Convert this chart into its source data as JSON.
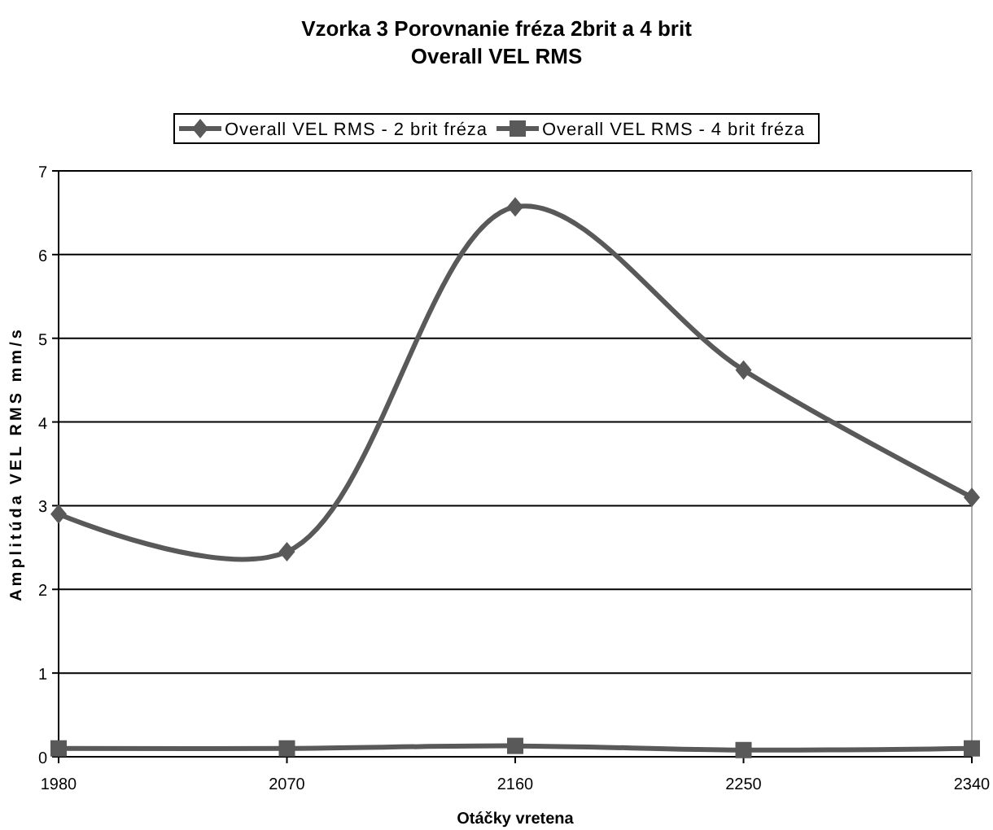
{
  "chart_data": {
    "type": "line",
    "title": "Vzorka 3 Porovnanie fréza 2brit a 4 brit\nOverall VEL RMS",
    "xlabel": "Otáčky vretena",
    "ylabel": "Amplitúda VEL RMS mm/s",
    "categories": [
      "1980",
      "2070",
      "2160",
      "2250",
      "2340"
    ],
    "series": [
      {
        "name": "Overall VEL RMS - 2 brit fréza",
        "color": "#595959",
        "marker": "diamond",
        "values": [
          2.9,
          2.45,
          6.57,
          4.62,
          3.1
        ]
      },
      {
        "name": "Overall VEL RMS - 4 brit fréza",
        "color": "#595959",
        "marker": "square",
        "values": [
          0.1,
          0.1,
          0.13,
          0.08,
          0.1
        ]
      }
    ],
    "ylim": [
      0,
      7
    ],
    "yticks": [
      0,
      1,
      2,
      3,
      4,
      5,
      6,
      7
    ],
    "grid": "y",
    "legend": "top",
    "line_style": "solid"
  }
}
